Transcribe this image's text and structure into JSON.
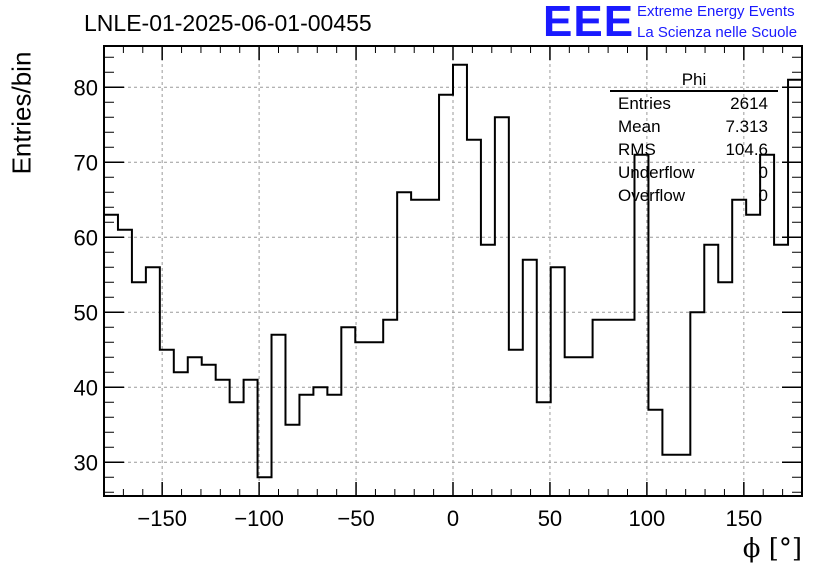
{
  "title": "LNLE-01-2025-06-01-00455",
  "logo": {
    "mark": "EEE",
    "line1": "Extreme Energy Events",
    "line2": "La Scienza nelle Scuole",
    "color": "#1a1aff"
  },
  "stats": {
    "name": "Phi",
    "rows": [
      {
        "key": "Entries",
        "value": "2614"
      },
      {
        "key": "Mean",
        "value": "7.313"
      },
      {
        "key": "RMS",
        "value": "104.6"
      },
      {
        "key": "Underflow",
        "value": "0"
      },
      {
        "key": "Overflow",
        "value": "0"
      }
    ]
  },
  "chart_data": {
    "type": "histogram",
    "title": "LNLE-01-2025-06-01-00455",
    "xlabel": "ϕ [°]",
    "ylabel": "Entries/bin",
    "xlim": [
      -180,
      180
    ],
    "ylim": [
      25.5,
      85.5
    ],
    "grid": true,
    "bin_width": 7.2,
    "bin_edges_start": -180,
    "values": [
      63,
      61,
      54,
      56,
      45,
      42,
      44,
      43,
      41,
      38,
      41,
      28,
      47,
      35,
      39,
      40,
      39,
      48,
      46,
      46,
      49,
      66,
      65,
      65,
      79,
      83,
      73,
      59,
      76,
      45,
      57,
      38,
      56,
      44,
      44,
      49,
      49,
      49,
      71,
      37,
      31,
      31,
      50,
      59,
      54,
      65,
      63,
      71,
      59,
      81
    ],
    "xticks": [
      -150,
      -100,
      -50,
      0,
      50,
      100,
      150
    ],
    "xtick_labels": [
      "−150",
      "−100",
      "−50",
      "0",
      "50",
      "100",
      "150"
    ],
    "yticks": [
      30,
      40,
      50,
      60,
      70,
      80
    ],
    "ytick_labels": [
      "30",
      "40",
      "50",
      "60",
      "70",
      "80"
    ]
  }
}
